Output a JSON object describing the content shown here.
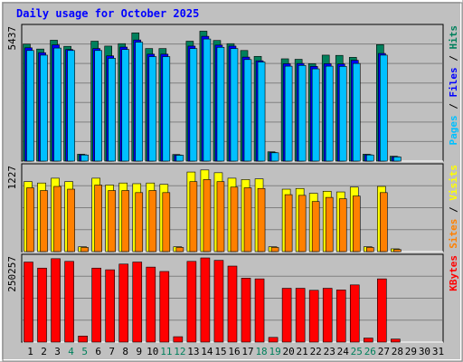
{
  "title": "Daily usage for October 2025",
  "colors": {
    "frame_bg": "#c0c0c0",
    "plot_bg": "#c0c0c0",
    "grid": "#808080",
    "title": "#0000ff",
    "hits": "#00805c",
    "files": "#0000ff",
    "pages": "#00c0ff",
    "visits": "#ffff00",
    "sites": "#ff8000",
    "kbytes": "#ff0000",
    "weekend_label": "#00805c",
    "weekday_label": "#000000"
  },
  "chart_data": [
    {
      "type": "bar",
      "title": "Daily usage for October 2025",
      "ymax_label": "5437",
      "ylim": [
        0,
        5437
      ],
      "grid": true,
      "legend": [
        {
          "name": "Pages",
          "color": "#00c0ff"
        },
        {
          "name": "Files",
          "color": "#0000ff"
        },
        {
          "name": "Hits",
          "color": "#00805c"
        }
      ],
      "categories": [
        "1",
        "2",
        "3",
        "4",
        "5",
        "6",
        "7",
        "8",
        "9",
        "10",
        "11",
        "12",
        "13",
        "14",
        "15",
        "16",
        "17",
        "18",
        "19",
        "20",
        "21",
        "22",
        "23",
        "24",
        "25",
        "26",
        "27",
        "28",
        "29",
        "30",
        "31"
      ],
      "series": [
        {
          "name": "Hits",
          "values": [
            4780,
            4580,
            4940,
            4690,
            280,
            4900,
            4700,
            4800,
            5240,
            4600,
            4600,
            270,
            4900,
            5310,
            4930,
            4800,
            4520,
            4280,
            380,
            4180,
            4160,
            3980,
            4330,
            4320,
            4240,
            280,
            4760,
            200,
            0,
            0,
            0
          ]
        },
        {
          "name": "Files",
          "values": [
            4630,
            4430,
            4750,
            4560,
            260,
            4600,
            4300,
            4660,
            4950,
            4370,
            4370,
            250,
            4700,
            5100,
            4740,
            4700,
            4250,
            4100,
            350,
            3980,
            3990,
            3870,
            3980,
            3970,
            4120,
            260,
            4400,
            180,
            0,
            0,
            0
          ]
        },
        {
          "name": "Pages",
          "values": [
            4520,
            4330,
            4620,
            4520,
            250,
            4520,
            4200,
            4560,
            4860,
            4270,
            4270,
            240,
            4600,
            4990,
            4650,
            4600,
            4150,
            4050,
            340,
            3880,
            3910,
            3770,
            3880,
            3870,
            3990,
            250,
            4330,
            170,
            0,
            0,
            0
          ]
        }
      ]
    },
    {
      "type": "bar",
      "ymax_label": "1227",
      "ylim": [
        0,
        1227
      ],
      "grid": true,
      "legend": [
        {
          "name": "Sites",
          "color": "#ff8000"
        },
        {
          "name": "Visits",
          "color": "#ffff00"
        }
      ],
      "categories": [
        "1",
        "2",
        "3",
        "4",
        "5",
        "6",
        "7",
        "8",
        "9",
        "10",
        "11",
        "12",
        "13",
        "14",
        "15",
        "16",
        "17",
        "18",
        "19",
        "20",
        "21",
        "22",
        "23",
        "24",
        "25",
        "26",
        "27",
        "28",
        "29",
        "30",
        "31"
      ],
      "series": [
        {
          "name": "Visits",
          "values": [
            1020,
            1000,
            1070,
            1020,
            70,
            1070,
            970,
            1000,
            990,
            1000,
            980,
            70,
            1160,
            1190,
            1150,
            1070,
            1050,
            1060,
            70,
            910,
            920,
            850,
            880,
            870,
            940,
            70,
            950,
            40,
            0,
            0,
            0
          ]
        },
        {
          "name": "Sites",
          "values": [
            930,
            890,
            950,
            910,
            60,
            970,
            890,
            890,
            860,
            890,
            860,
            60,
            1020,
            1050,
            1020,
            940,
            930,
            920,
            60,
            830,
            820,
            730,
            790,
            770,
            810,
            60,
            860,
            30,
            0,
            0,
            0
          ]
        }
      ]
    },
    {
      "type": "bar",
      "ymax_label": "250257",
      "ylim": [
        0,
        250257
      ],
      "grid": true,
      "legend": [
        {
          "name": "KBytes",
          "color": "#ff0000"
        }
      ],
      "categories": [
        "1",
        "2",
        "3",
        "4",
        "5",
        "6",
        "7",
        "8",
        "9",
        "10",
        "11",
        "12",
        "13",
        "14",
        "15",
        "16",
        "17",
        "18",
        "19",
        "20",
        "21",
        "22",
        "23",
        "24",
        "25",
        "26",
        "27",
        "28",
        "29",
        "30",
        "31"
      ],
      "series": [
        {
          "name": "KBytes",
          "values": [
            238000,
            220000,
            248000,
            240000,
            18000,
            220000,
            215000,
            232000,
            238000,
            223000,
            210000,
            16000,
            240000,
            250257,
            243000,
            226000,
            190000,
            188000,
            14000,
            160000,
            160000,
            154000,
            160000,
            155000,
            170000,
            12000,
            188000,
            9000,
            0,
            0,
            0
          ]
        }
      ]
    }
  ],
  "x_labels": [
    "1",
    "2",
    "3",
    "4",
    "5",
    "6",
    "7",
    "8",
    "9",
    "10",
    "11",
    "12",
    "13",
    "14",
    "15",
    "16",
    "17",
    "18",
    "19",
    "20",
    "21",
    "22",
    "23",
    "24",
    "25",
    "26",
    "27",
    "28",
    "29",
    "30",
    "31"
  ],
  "weekend_days": [
    "4",
    "5",
    "11",
    "12",
    "18",
    "19",
    "25",
    "26"
  ],
  "legend_separator": "/"
}
